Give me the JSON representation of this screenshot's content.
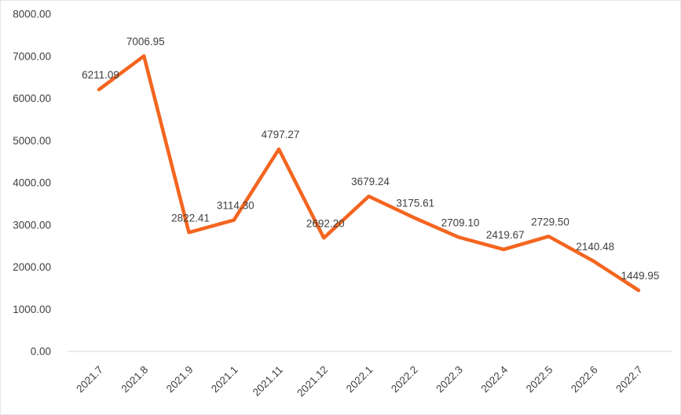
{
  "chart_data": {
    "type": "line",
    "title": "",
    "xlabel": "",
    "ylabel": "",
    "categories": [
      "2021.7",
      "2021.8",
      "2021.9",
      "2021.1",
      "2021.11",
      "2021.12",
      "2022.1",
      "2022.2",
      "2022.3",
      "2022.4",
      "2022.5",
      "2022.6",
      "2022.7"
    ],
    "values": [
      6211.09,
      7006.95,
      2822.41,
      3114.3,
      4797.27,
      2692.2,
      3679.24,
      3175.61,
      2709.1,
      2419.67,
      2729.5,
      2140.48,
      1449.95
    ],
    "data_labels": [
      "6211.09",
      "7006.95",
      "2822.41",
      "3114.30",
      "4797.27",
      "2692.20",
      "3679.24",
      "3175.61",
      "2709.10",
      "2419.67",
      "2729.50",
      "2140.48",
      "1449.95"
    ],
    "ylim": [
      0,
      8000
    ],
    "y_tick_step": 1000,
    "y_tick_labels": [
      "0.00",
      "1000.00",
      "2000.00",
      "3000.00",
      "4000.00",
      "5000.00",
      "6000.00",
      "7000.00",
      "8000.00"
    ],
    "grid": "off",
    "legend": "none",
    "line_color": "#f4651f",
    "axis_line_color": "#d9d9d9",
    "label_color": "#404040",
    "x_label_rotation_deg": -45
  }
}
